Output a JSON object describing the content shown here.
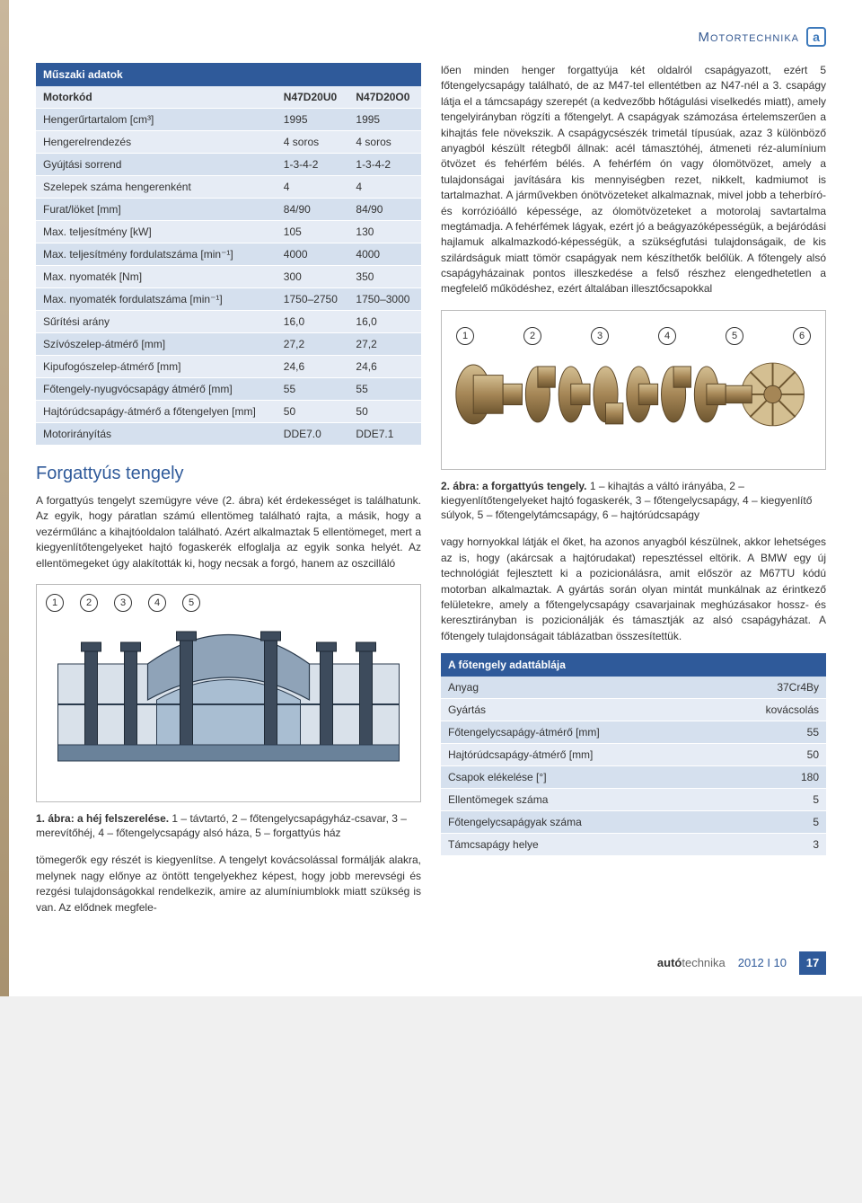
{
  "header": {
    "category": "Motortechnika",
    "logo_glyph": "a"
  },
  "table1": {
    "title": "Műszaki adatok",
    "col2": "N47D20U0",
    "col3": "N47D20O0",
    "rows": [
      {
        "label": "Motorkód",
        "v1": "N47D20U0",
        "v2": "N47D20O0",
        "is_header": true
      },
      {
        "label": "Hengerűrtartalom [cm³]",
        "v1": "1995",
        "v2": "1995"
      },
      {
        "label": "Hengerelrendezés",
        "v1": "4 soros",
        "v2": "4 soros"
      },
      {
        "label": "Gyújtási sorrend",
        "v1": "1-3-4-2",
        "v2": "1-3-4-2"
      },
      {
        "label": "Szelepek száma hengerenként",
        "v1": "4",
        "v2": "4"
      },
      {
        "label": "Furat/löket [mm]",
        "v1": "84/90",
        "v2": "84/90"
      },
      {
        "label": "Max. teljesítmény [kW]",
        "v1": "105",
        "v2": "130"
      },
      {
        "label": "Max. teljesítmény fordulatszáma [min⁻¹]",
        "v1": "4000",
        "v2": "4000"
      },
      {
        "label": "Max. nyomaték [Nm]",
        "v1": "300",
        "v2": "350"
      },
      {
        "label": "Max. nyomaték fordulatszáma [min⁻¹]",
        "v1": "1750–2750",
        "v2": "1750–3000"
      },
      {
        "label": "Sűrítési arány",
        "v1": "16,0",
        "v2": "16,0"
      },
      {
        "label": "Szívószelep-átmérő [mm]",
        "v1": "27,2",
        "v2": "27,2"
      },
      {
        "label": "Kipufogószelep-átmérő [mm]",
        "v1": "24,6",
        "v2": "24,6"
      },
      {
        "label": "Főtengely-nyugvócsapágy átmérő [mm]",
        "v1": "55",
        "v2": "55"
      },
      {
        "label": "Hajtórúdcsapágy-átmérő a főtengelyen [mm]",
        "v1": "50",
        "v2": "50"
      },
      {
        "label": "Motorirányítás",
        "v1": "DDE7.0",
        "v2": "DDE7.1"
      }
    ]
  },
  "section_title": "Forgattyús tengely",
  "para_left": "A forgattyús tengelyt szemügyre véve (2. ábra) két érdekességet is találhatunk. Az egyik, hogy páratlan számú ellentömeg található rajta, a másik, hogy a vezérműlánc a kihajtóoldalon található. Azért alkalmaztak 5 ellentömeget, mert a kiegyenlítőtengelyeket hajtó fogaskerék elfoglalja az egyik sonka helyét. Az ellentömegeket úgy alakították ki, hogy necsak a forgó, hanem az oszcilláló",
  "fig1": {
    "labels": [
      "1",
      "2",
      "3",
      "4",
      "5"
    ],
    "caption_bold": "1. ábra: a héj felszerelése.",
    "caption_rest": " 1 – távtartó, 2 – főtengelycsapágyház-csavar, 3 – merevítőhéj, 4 – főtengelycsapágy alsó háza, 5 – forgattyús ház",
    "colors": {
      "housing": "#8fa3b8",
      "bolt": "#3d4b5c",
      "spacer": "#6a829a",
      "outline": "#2b3b4d",
      "bg": "#d9e1ea"
    }
  },
  "para_left2": "tömegerők egy részét is kiegyenlítse. A tengelyt kovácsolással formálják alakra, melynek nagy előnye az öntött tengelyekhez képest, hogy jobb merevségi és rezgési tulajdonságokkal rendelkezik, amire az alumíniumblokk miatt szükség is van. Az elődnek megfele-",
  "para_right1": "lően minden henger forgattyúja két oldalról csapágyazott, ezért 5 főtengelycsapágy található, de az M47-tel ellentétben az N47-nél a 3. csapágy látja el a támcsapágy szerepét (a kedvezőbb hőtágulási viselkedés miatt), amely tengelyirányban rögzíti a főtengelyt. A csapágyak számozása értelemszerűen a kihajtás fele növekszik. A csapágycsészék trimetál típusúak, azaz 3 különböző anyagból készült rétegből állnak: acél támasztóhéj, átmeneti réz-alumínium ötvözet és fehérfém bélés. A fehérfém ón vagy ólomötvözet, amely a tulajdonságai javítására kis mennyiségben rezet, nikkelt, kadmiumot is tartalmazhat. A járművekben ónötvözeteket alkalmaznak, mivel jobb a teherbíró- és korrózióálló képessége, az ólomötvözeteket a motorolaj savtartalma megtámadja. A fehérfémek lágyak, ezért jó a beágyazóképességük, a bejáródási hajlamuk alkalmazkodó-képességük, a szükségfutási tulajdonságaik, de kis szilárdságuk miatt tömör csapágyak nem készíthetők belőlük. A főtengely alsó csapágyházainak pontos illeszkedése a felső részhez elengedhetetlen a megfelelő működéshez, ezért általában illesztőcsapokkal",
  "fig2": {
    "labels": [
      "1",
      "2",
      "3",
      "4",
      "5",
      "6"
    ],
    "caption_bold": "2. ábra: a forgattyús tengely.",
    "caption_rest": " 1 – kihajtás a váltó irányába, 2 – kiegyenlítőtengelyeket hajtó fogaskerék, 3 – főtengelycsapágy, 4 – kiegyenlítő súlyok, 5 – főtengelytámcsapágy, 6 – hajtórúdcsapágy",
    "colors": {
      "metal_light": "#c8b088",
      "metal_mid": "#a58656",
      "metal_dark": "#6e5630",
      "gear": "#d4bf92"
    }
  },
  "para_right2": "vagy hornyokkal látják el őket, ha azonos anyagból készülnek, akkor lehetséges az is, hogy (akárcsak a hajtórudakat) repesztéssel eltörik. A BMW egy új technológiát fejlesztett ki a pozicionálásra, amit először az M67TU kódú motorban alkalmaztak. A gyártás során olyan mintát munkálnak az érintkező felületekre, amely a főtengelycsapágy csavarjainak meghúzásakor hossz- és keresztirányban is pozicionálják és támasztják az alsó csapágyházat. A főtengely tulajdonságait táblázatban összesítettük.",
  "table2": {
    "title": "A főtengely adattáblája",
    "rows": [
      {
        "label": "Anyag",
        "val": "37Cr4By"
      },
      {
        "label": "Gyártás",
        "val": "kovácsolás"
      },
      {
        "label": "Főtengelycsapágy-átmérő [mm]",
        "val": "55"
      },
      {
        "label": "Hajtórúdcsapágy-átmérő [mm]",
        "val": "50"
      },
      {
        "label": "Csapok elékelése [°]",
        "val": "180"
      },
      {
        "label": "Ellentömegek száma",
        "val": "5"
      },
      {
        "label": "Főtengelycsapágyak száma",
        "val": "5"
      },
      {
        "label": "Támcsapágy helye",
        "val": "3"
      }
    ]
  },
  "footer": {
    "mag_bold": "autó",
    "mag_rest": "technika",
    "issue": "2012 I 10",
    "page": "17"
  }
}
